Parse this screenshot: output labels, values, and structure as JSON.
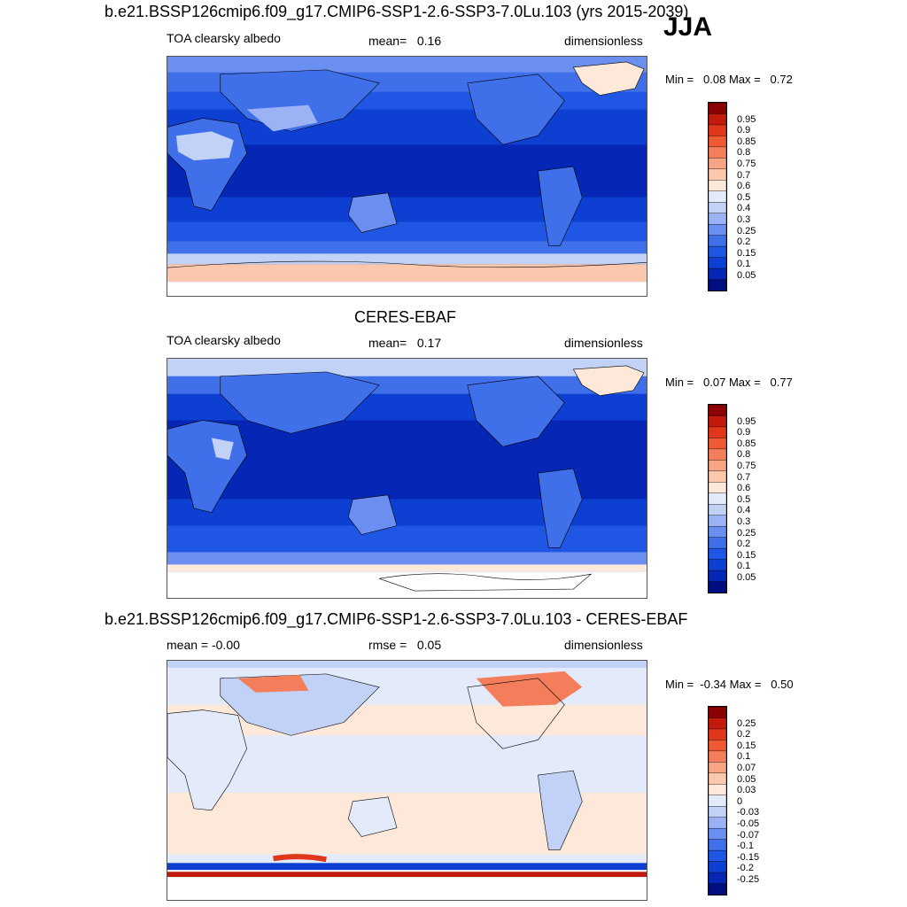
{
  "season": "JJA",
  "colors": {
    "full": [
      "#000f7f",
      "#0627b5",
      "#0c3fd2",
      "#1f56e3",
      "#3f6fe9",
      "#6b8ff0",
      "#9bb2f4",
      "#c2d2f7",
      "#e3ebfb",
      "#fde8d9",
      "#fcc8ad",
      "#f8a585",
      "#f47e5c",
      "#ef5a34",
      "#e0361a",
      "#c21b0d",
      "#8b0000"
    ],
    "diff": [
      "#000f7f",
      "#0627b5",
      "#0c3fd2",
      "#1f56e3",
      "#3f6fe9",
      "#6b8ff0",
      "#9bb2f4",
      "#c2d2f7",
      "#e3ebfb",
      "#fde8d9",
      "#fcc8ad",
      "#f8a585",
      "#f47e5c",
      "#ef5a34",
      "#e0361a",
      "#c21b0d",
      "#8b0000"
    ]
  },
  "panels": [
    {
      "title": "b.e21.BSSP126cmip6.f09_g17.CMIP6-SSP1-2.6-SSP3-7.0Lu.103 (yrs 2015-2039)",
      "left_label": "TOA clearsky albedo",
      "stat_label": "mean=",
      "stat_value": "0.16",
      "units": "dimensionless",
      "minmax_min_label": "Min =",
      "min": "0.08",
      "minmax_max_label": "Max =",
      "max": "0.72",
      "levels": [
        "0.95",
        "0.9",
        "0.85",
        "0.8",
        "0.75",
        "0.7",
        "0.6",
        "0.5",
        "0.4",
        "0.3",
        "0.25",
        "0.2",
        "0.15",
        "0.1",
        "0.05"
      ]
    },
    {
      "title": "CERES-EBAF",
      "left_label": "TOA clearsky albedo",
      "stat_label": "mean=",
      "stat_value": "0.17",
      "units": "dimensionless",
      "minmax_min_label": "Min =",
      "min": "0.07",
      "minmax_max_label": "Max =",
      "max": "0.77",
      "levels": [
        "0.95",
        "0.9",
        "0.85",
        "0.8",
        "0.75",
        "0.7",
        "0.6",
        "0.5",
        "0.4",
        "0.3",
        "0.25",
        "0.2",
        "0.15",
        "0.1",
        "0.05"
      ]
    },
    {
      "title": "b.e21.BSSP126cmip6.f09_g17.CMIP6-SSP1-2.6-SSP3-7.0Lu.103 - CERES-EBAF",
      "left_label": "mean =  -0.00",
      "stat_label": "rmse =",
      "stat_value": "0.05",
      "units": "dimensionless",
      "minmax_min_label": "Min =",
      "min": "-0.34",
      "minmax_max_label": "Max =",
      "max": "0.50",
      "levels": [
        "0.25",
        "0.2",
        "0.15",
        "0.1",
        "0.07",
        "0.05",
        "0.03",
        "0",
        "-0.03",
        "-0.05",
        "-0.07",
        "-0.1",
        "-0.15",
        "-0.2",
        "-0.25"
      ]
    }
  ]
}
